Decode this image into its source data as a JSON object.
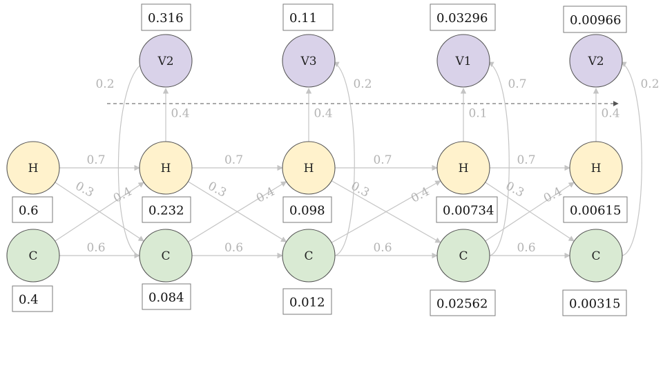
{
  "colors": {
    "h_fill": "#fff2cc",
    "c_fill": "#d9ead3",
    "v_fill": "#d9d2e9",
    "node_stroke": "#555555",
    "edge": "#c4c4c4",
    "edge_label": "#b3b3b3",
    "dashed": "#555555"
  },
  "nodes": {
    "h": [
      "H",
      "H",
      "H",
      "H",
      "H"
    ],
    "c": [
      "C",
      "C",
      "C",
      "C",
      "C"
    ],
    "v": [
      "V2",
      "V3",
      "V1",
      "V2"
    ]
  },
  "boxes": {
    "h": [
      "0.6",
      "0.232",
      "0.098",
      "0.00734",
      "0.00615"
    ],
    "c": [
      "0.4",
      "0.084",
      "0.012",
      "0.02562",
      "0.00315"
    ],
    "v": [
      "0.316",
      "0.11",
      "0.03296",
      "0.00966"
    ]
  },
  "edges": {
    "hh": [
      "0.7",
      "0.7",
      "0.7",
      "0.7"
    ],
    "cc": [
      "0.6",
      "0.6",
      "0.6",
      "0.6"
    ],
    "hc": [
      "0.3",
      "0.3",
      "0.3",
      "0.3"
    ],
    "ch": [
      "0.4",
      "0.4",
      "0.4",
      "0.4"
    ],
    "hv": [
      "0.4",
      "0.4",
      "0.1",
      "0.4"
    ],
    "cv": [
      "0.2",
      "0.2",
      "0.7",
      "0.2"
    ]
  }
}
